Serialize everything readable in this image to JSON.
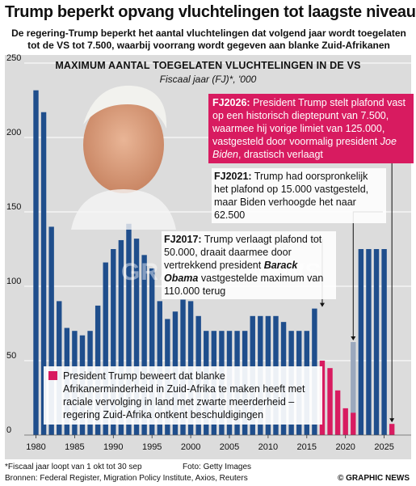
{
  "header": {
    "title": "Trump beperkt opvang vluchtelingen tot laagste niveau",
    "subtitle": "De regering-Trump beperkt het aantal vluchtelingen dat  volgend jaar wordt toegelaten tot de VS tot 7.500, waarbij voorrang wordt gegeven aan blanke Zuid-Afrikanen"
  },
  "chart_data": {
    "type": "bar",
    "title": "MAXIMUM AANTAL TOEGELATEN VLUCHTELINGEN IN DE VS",
    "subtitle": "Fiscaal jaar (FJ)*, '000",
    "ylim": [
      0,
      250
    ],
    "yticks": [
      0,
      50,
      100,
      150,
      200,
      250
    ],
    "xticks": [
      1980,
      1985,
      1990,
      1995,
      2000,
      2005,
      2010,
      2015,
      2020,
      2025
    ],
    "x": [
      1980,
      1981,
      1982,
      1983,
      1984,
      1985,
      1986,
      1987,
      1988,
      1989,
      1990,
      1991,
      1992,
      1993,
      1994,
      1995,
      1996,
      1997,
      1998,
      1999,
      2000,
      2001,
      2002,
      2003,
      2004,
      2005,
      2006,
      2007,
      2008,
      2009,
      2010,
      2011,
      2012,
      2013,
      2014,
      2015,
      2016,
      2017,
      2018,
      2019,
      2020,
      2021,
      2022,
      2023,
      2024,
      2025,
      2026
    ],
    "values": [
      231.7,
      217,
      140,
      90,
      72,
      70,
      67,
      70,
      87,
      116,
      125,
      131,
      142,
      132,
      121,
      112,
      90,
      78,
      83,
      91,
      90,
      80,
      70,
      70,
      70,
      70,
      70,
      70,
      80,
      80,
      80,
      80,
      76,
      70,
      70,
      70,
      85,
      50,
      45,
      30,
      18,
      62.5,
      125,
      125,
      125,
      125,
      7.5
    ],
    "highlight": {
      "years": [
        2017,
        2018,
        2019,
        2020,
        2021,
        2026
      ],
      "values": [
        50,
        45,
        30,
        18,
        15,
        7.5
      ],
      "color": "#d81b60"
    },
    "bar_color": "#1f4e8c",
    "grey_color": "#9ba8bd"
  },
  "annotations": {
    "fy2026_prefix": "FJ2026:",
    "fy2026_text": " President Trump stelt plafond vast op een historisch dieptepunt van 7.500, waarmee hij vorige limiet van 125.000, vastgesteld door voormalig president ",
    "fy2026_name": "Joe Biden",
    "fy2026_suffix": ", drastisch verlaagt",
    "fy2021_prefix": "FJ2021:",
    "fy2021_text": " Trump had oorspronkelijk het plafond op 15.000 vastgesteld, maar Biden verhoogde het naar 62.500",
    "fy2017_prefix": "FJ2017:",
    "fy2017_text": " Trump verlaagt plafond tot 50.000, draait daarmee door vertrekkend president ",
    "fy2017_name": "Barack Obama",
    "fy2017_suffix": " vastgestelde maximum van 110.000 terug"
  },
  "legend": {
    "text": "President Trump beweert dat blanke Afrikanerminderheid in Zuid-Afrika te maken heeft met raciale vervolging in land met zwarte meerderheid – regering Zuid-Afrika ontkent beschuldigingen"
  },
  "footer": {
    "footnote": "*Fiscaal jaar loopt van 1 okt tot 30 sep",
    "photo_credit": "Foto: Getty Images",
    "sources": "Bronnen: Federal Register, Migration Policy Institute, Axios, Reuters",
    "logo": "© GRAPHIC NEWS"
  },
  "watermark": "GRAPHIC NEWS"
}
